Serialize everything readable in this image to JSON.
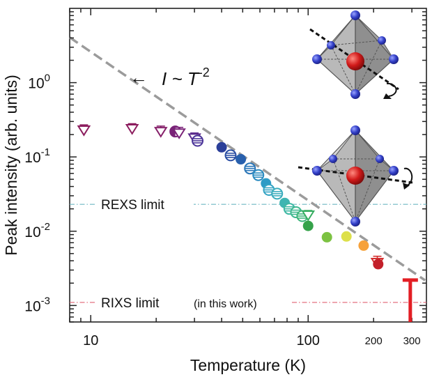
{
  "chart_data": {
    "type": "scatter",
    "xlabel": "Temperature (K)",
    "ylabel": "Peak intensity (arb. units)",
    "xscale": "log",
    "yscale": "log",
    "xlim": [
      8,
      350
    ],
    "ylim": [
      0.0006,
      10
    ],
    "x_ticks": [
      {
        "value": 10,
        "label": "10"
      },
      {
        "value": 100,
        "label": "100"
      },
      {
        "value": 200,
        "label": "200"
      },
      {
        "value": 300,
        "label": "300"
      }
    ],
    "y_ticks": [
      {
        "value": 0.001,
        "base": "10",
        "exp": "-3"
      },
      {
        "value": 0.01,
        "base": "10",
        "exp": "-2"
      },
      {
        "value": 0.1,
        "base": "10",
        "exp": "-1"
      },
      {
        "value": 1,
        "base": "10",
        "exp": "0"
      }
    ],
    "power_law": {
      "base": "I ~ T",
      "exp": "-2",
      "arrow": "←",
      "amplitude": 260,
      "exponent": -2,
      "x_range": [
        8,
        345
      ],
      "color": "#9b9b9b"
    },
    "reference_lines": [
      {
        "label": "REXS limit",
        "y": 0.023,
        "color": "#6fb7c4"
      },
      {
        "label": "RIXS limit",
        "sublabel": "(in this work)",
        "y": 0.0011,
        "color": "#e06070"
      }
    ],
    "points": [
      {
        "x": 9.3,
        "y": 0.23,
        "marker": "triangle-open",
        "color": "#8c1d5e",
        "err": [
          0.2,
          0.27
        ]
      },
      {
        "x": 15.5,
        "y": 0.24,
        "marker": "triangle-open",
        "color": "#8c1d5e",
        "err": [
          0.21,
          0.28
        ]
      },
      {
        "x": 21,
        "y": 0.22,
        "marker": "triangle-open",
        "color": "#86206a",
        "err": [
          0.19,
          0.26
        ]
      },
      {
        "x": 24.5,
        "y": 0.22,
        "marker": "circle-half",
        "color": "#7a2378",
        "err": null
      },
      {
        "x": 25.5,
        "y": 0.21,
        "marker": "triangle-open",
        "color": "#7a2378",
        "err": [
          0.18,
          0.25
        ]
      },
      {
        "x": 30,
        "y": 0.18,
        "marker": "triangle-open",
        "color": "#5c2d8c",
        "err": [
          0.155,
          0.21
        ]
      },
      {
        "x": 31,
        "y": 0.165,
        "marker": "circle-striped",
        "color": "#4b3499",
        "err": null
      },
      {
        "x": 40,
        "y": 0.135,
        "marker": "circle",
        "color": "#2b3f99",
        "err": null
      },
      {
        "x": 44,
        "y": 0.105,
        "marker": "circle-striped",
        "color": "#2a4ea3",
        "err": null
      },
      {
        "x": 49,
        "y": 0.093,
        "marker": "circle",
        "color": "#2860ad",
        "err": null
      },
      {
        "x": 54,
        "y": 0.07,
        "marker": "circle-striped",
        "color": "#2a76b8",
        "err": null
      },
      {
        "x": 59,
        "y": 0.057,
        "marker": "circle-striped",
        "color": "#2b8bc0",
        "err": null
      },
      {
        "x": 64,
        "y": 0.044,
        "marker": "circle",
        "color": "#2e9bc6",
        "err": null
      },
      {
        "x": 66,
        "y": 0.036,
        "marker": "circle-striped",
        "color": "#35a4c4",
        "err": null
      },
      {
        "x": 72,
        "y": 0.032,
        "marker": "circle-striped",
        "color": "#3badbd",
        "err": null
      },
      {
        "x": 78,
        "y": 0.024,
        "marker": "circle",
        "color": "#3fb5b2",
        "err": null
      },
      {
        "x": 82,
        "y": 0.02,
        "marker": "circle-striped",
        "color": "#3fb8a4",
        "err": null
      },
      {
        "x": 88,
        "y": 0.018,
        "marker": "circle-striped",
        "color": "#40b891",
        "err": null
      },
      {
        "x": 94,
        "y": 0.016,
        "marker": "circle-striped",
        "color": "#3eb57b",
        "err": null
      },
      {
        "x": 100,
        "y": 0.0165,
        "marker": "triangle-open",
        "color": "#36ad60",
        "err": [
          0.014,
          0.019
        ]
      },
      {
        "x": 100,
        "y": 0.0118,
        "marker": "circle",
        "color": "#35a24a",
        "err": null
      },
      {
        "x": 122,
        "y": 0.0083,
        "marker": "circle",
        "color": "#7cc242",
        "err": null
      },
      {
        "x": 150,
        "y": 0.0085,
        "marker": "circle",
        "color": "#dde04a",
        "err": null
      },
      {
        "x": 180,
        "y": 0.0064,
        "marker": "circle",
        "color": "#f6a13a",
        "err": null
      },
      {
        "x": 208,
        "y": 0.0038,
        "marker": "triangle-open",
        "color": "#d42e2e",
        "err": [
          0.0032,
          0.0046
        ]
      },
      {
        "x": 210,
        "y": 0.0036,
        "marker": "circle",
        "color": "#c3202a",
        "err": null
      },
      {
        "x": 295,
        "y": 0.0022,
        "marker": "upper-limit",
        "color": "#e31e24",
        "err": null
      }
    ],
    "insets": [
      {
        "name": "octahedron-rotated"
      },
      {
        "name": "octahedron-flat"
      }
    ]
  }
}
